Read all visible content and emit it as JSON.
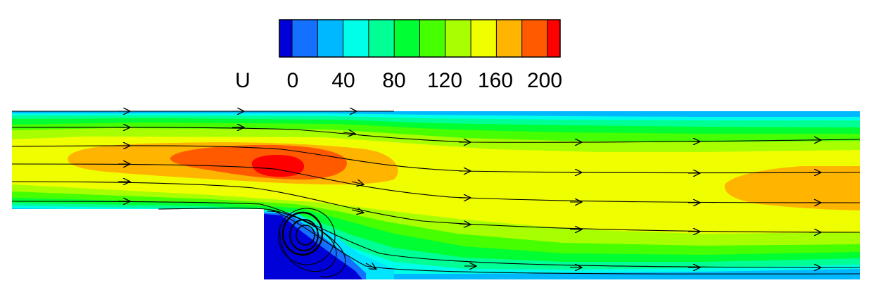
{
  "chart_data": {
    "type": "heatmap",
    "title": "",
    "colorbar": {
      "label": "U",
      "ticks": [
        "0",
        "40",
        "80",
        "120",
        "160",
        "200"
      ],
      "tick_values": [
        0,
        40,
        80,
        120,
        160,
        200
      ],
      "range": [
        -20,
        210
      ],
      "colors": [
        "#0000d8",
        "#1470ff",
        "#00b8ff",
        "#00ffe8",
        "#00ff94",
        "#00ff32",
        "#46ff00",
        "#a8ff00",
        "#f0ff00",
        "#ffb400",
        "#ff5a00",
        "#ff0000"
      ]
    },
    "geometry": "backward-facing step channel",
    "streamlines": 10,
    "field_peak_value": 200,
    "recirculation_value": -20
  }
}
